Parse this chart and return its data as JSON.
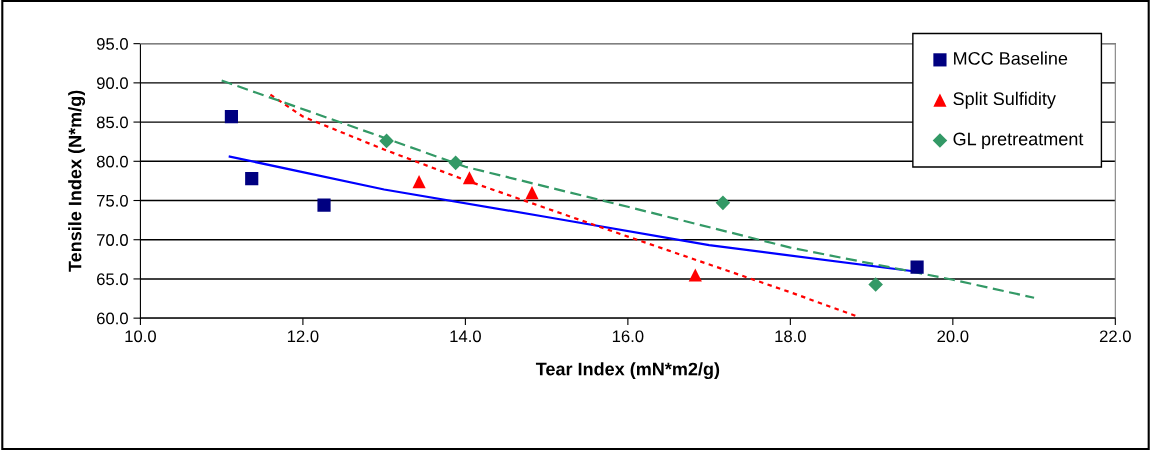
{
  "chart_data": {
    "type": "scatter",
    "xlabel": "Tear Index (mN*m2/g)",
    "ylabel": "Tensile Index (N*m/g)",
    "xlim": [
      10.0,
      22.0
    ],
    "xticks": [
      {
        "value": 10,
        "label": "10.0"
      },
      {
        "value": 12,
        "label": "12.0"
      },
      {
        "value": 14,
        "label": "14.0"
      },
      {
        "value": 16,
        "label": "16.0"
      },
      {
        "value": 18,
        "label": "18.0"
      },
      {
        "value": 20,
        "label": "20.0"
      },
      {
        "value": 22,
        "label": "22.0"
      }
    ],
    "ylim": [
      60.0,
      95.0
    ],
    "yticks": [
      {
        "value": 60,
        "label": "60.0"
      },
      {
        "value": 65,
        "label": "65.0"
      },
      {
        "value": 70,
        "label": "70.0"
      },
      {
        "value": 75,
        "label": "75.0"
      },
      {
        "value": 80,
        "label": "80.0"
      },
      {
        "value": 85,
        "label": "85.0"
      },
      {
        "value": 90,
        "label": "90.0"
      },
      {
        "value": 95,
        "label": "95.0"
      }
    ],
    "grid": "y",
    "legend": "top right",
    "series": [
      {
        "name": "MCC Baseline",
        "marker": "square",
        "color": "#000080",
        "x": [
          11.12,
          11.37,
          12.26,
          19.56
        ],
        "values": [
          85.7,
          77.8,
          74.4,
          66.5
        ]
      },
      {
        "name": "Split Sulfidity",
        "marker": "triangle",
        "color": "#ff0000",
        "x": [
          13.43,
          14.05,
          14.82,
          16.83
        ],
        "values": [
          77.4,
          77.9,
          76.0,
          65.5
        ]
      },
      {
        "name": "GL pretreatment",
        "marker": "diamond",
        "color": "#339966",
        "x": [
          13.03,
          13.88,
          17.17,
          19.05
        ],
        "values": [
          82.6,
          79.8,
          74.7,
          64.3
        ]
      },
      {
        "type": "line",
        "line_style": "solid",
        "color": "#0000ff",
        "x": [
          11.1,
          13.0,
          15.0,
          17.0,
          19.5
        ],
        "values": [
          80.6,
          76.4,
          72.9,
          69.3,
          66.0
        ]
      },
      {
        "type": "line",
        "line_style": "dotted",
        "color": "#ff0000",
        "x": [
          11.6,
          12.0,
          13.0,
          14.0,
          16.0,
          18.0,
          18.8
        ],
        "values": [
          88.5,
          85.7,
          81.5,
          77.6,
          70.4,
          63.3,
          60.3
        ]
      },
      {
        "type": "line",
        "line_style": "dashed",
        "color": "#339966",
        "x": [
          11.0,
          13.0,
          14.0,
          16.0,
          18.0,
          20.0,
          21.0
        ],
        "values": [
          90.3,
          83.0,
          79.3,
          74.2,
          69.0,
          64.9,
          62.6
        ]
      }
    ]
  }
}
